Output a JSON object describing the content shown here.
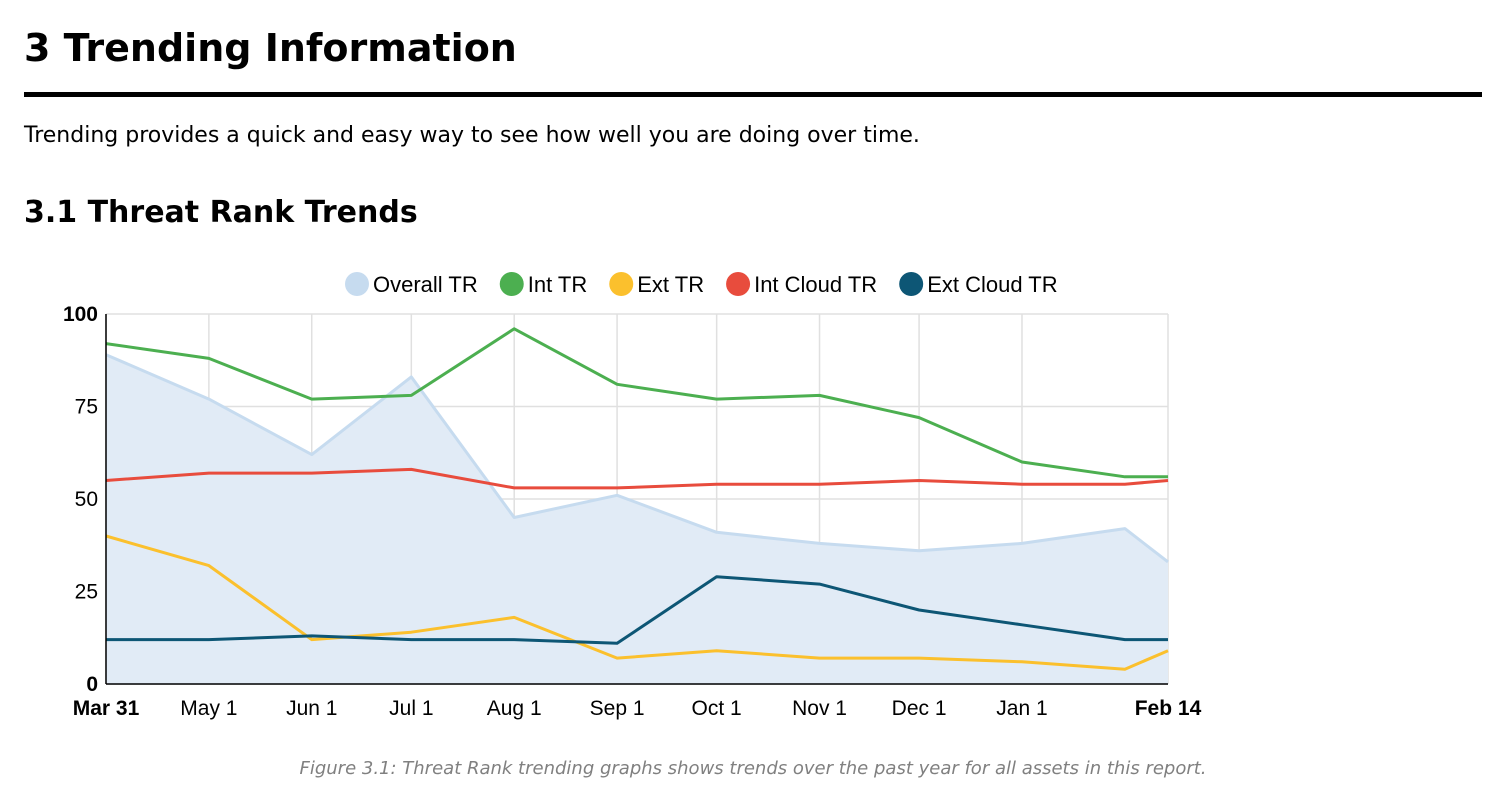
{
  "section": {
    "title": "3 Trending Information",
    "intro": "Trending provides a quick and easy way to see how well you are doing over time."
  },
  "subsection": {
    "title": "3.1 Threat Rank Trends"
  },
  "caption": "Figure 3.1: Threat Rank trending graphs shows trends over the past year for all assets in this report.",
  "chart_data": {
    "type": "line",
    "title": "",
    "xlabel": "",
    "ylabel": "",
    "ylim": [
      0,
      100
    ],
    "yticks": [
      0,
      25,
      50,
      75,
      100
    ],
    "grid": true,
    "legend_position": "top-center",
    "x": [
      "2023-03-31",
      "2023-05-01",
      "2023-06-01",
      "2023-07-01",
      "2023-08-01",
      "2023-09-01",
      "2023-10-01",
      "2023-11-01",
      "2023-12-01",
      "2024-01-01",
      "2024-02-01",
      "2024-02-14"
    ],
    "x_tick_labels": [
      {
        "x": "2023-03-31",
        "label": "Mar 31",
        "bold": true
      },
      {
        "x": "2023-05-01",
        "label": "May 1",
        "bold": false
      },
      {
        "x": "2023-06-01",
        "label": "Jun 1",
        "bold": false
      },
      {
        "x": "2023-07-01",
        "label": "Jul 1",
        "bold": false
      },
      {
        "x": "2023-08-01",
        "label": "Aug 1",
        "bold": false
      },
      {
        "x": "2023-09-01",
        "label": "Sep 1",
        "bold": false
      },
      {
        "x": "2023-10-01",
        "label": "Oct 1",
        "bold": false
      },
      {
        "x": "2023-11-01",
        "label": "Nov 1",
        "bold": false
      },
      {
        "x": "2023-12-01",
        "label": "Dec 1",
        "bold": false
      },
      {
        "x": "2024-01-01",
        "label": "Jan 1",
        "bold": false
      },
      {
        "x": "2024-02-14",
        "label": "Feb 14",
        "bold": true
      }
    ],
    "series": [
      {
        "name": "Overall TR",
        "color": "#c6dbef",
        "kind": "area",
        "fill": "#e1ebf6",
        "values": [
          89,
          77,
          62,
          83,
          45,
          51,
          41,
          38,
          36,
          38,
          42,
          33
        ]
      },
      {
        "name": "Int TR",
        "color": "#4caf50",
        "kind": "line",
        "values": [
          92,
          88,
          77,
          78,
          96,
          81,
          77,
          78,
          72,
          60,
          56,
          56
        ]
      },
      {
        "name": "Ext TR",
        "color": "#fbc02d",
        "kind": "line",
        "values": [
          40,
          32,
          12,
          14,
          18,
          7,
          9,
          7,
          7,
          6,
          4,
          9
        ]
      },
      {
        "name": "Int Cloud TR",
        "color": "#e84c3d",
        "kind": "line",
        "values": [
          55,
          57,
          57,
          58,
          53,
          53,
          54,
          54,
          55,
          54,
          54,
          55
        ]
      },
      {
        "name": "Ext Cloud TR",
        "color": "#0d5675",
        "kind": "line",
        "values": [
          12,
          12,
          13,
          12,
          12,
          11,
          29,
          27,
          20,
          16,
          12,
          12
        ]
      }
    ]
  }
}
